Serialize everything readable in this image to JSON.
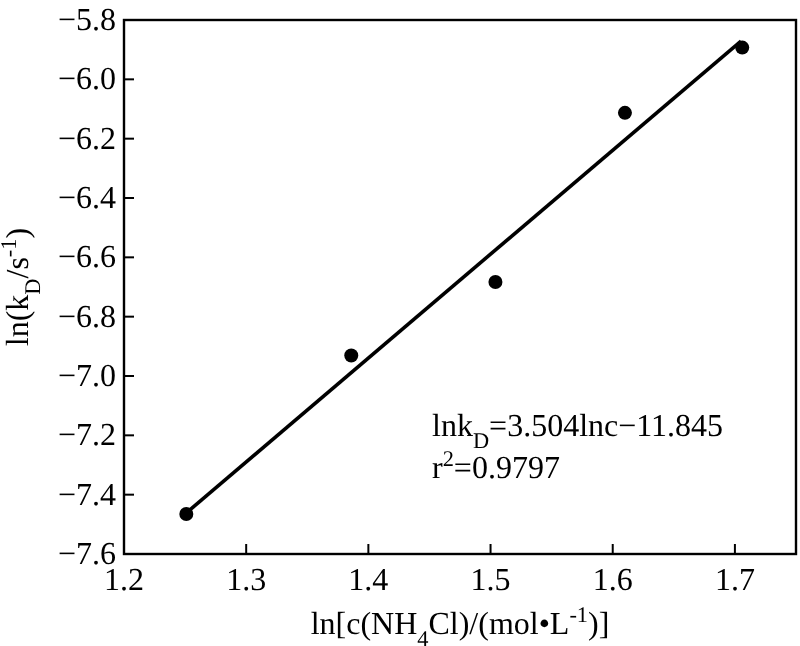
{
  "chart_data": {
    "type": "scatter",
    "xlabel": "ln[c(NH$_{4}$Cl)/(mol•L$^{-1}$)]",
    "ylabel": "ln(k$_{D}$/s$^{-1}$)",
    "xlim": [
      1.2,
      1.75
    ],
    "xticks": [
      1.2,
      1.3,
      1.4,
      1.5,
      1.6,
      1.7
    ],
    "ylim": [
      -7.6,
      -5.8
    ],
    "yticks": [
      -7.6,
      -7.4,
      -7.2,
      {
        "value": -7.0,
        "label": "−7.0"
      },
      -6.8,
      -6.6,
      -6.4,
      -6.2,
      {
        "value": -6.0,
        "label": "−6.0"
      },
      -5.8
    ],
    "grid": false,
    "series": [
      {
        "color": "#000000",
        "marker": "circle",
        "x": [
          1.251,
          1.386,
          1.504,
          1.61,
          1.706
        ],
        "values": [
          -7.465,
          -6.931,
          -6.683,
          -6.113,
          -5.893
        ]
      },
      {
        "type": "line",
        "color": "#000000",
        "x": [
          1.252,
          1.705
        ],
        "values": [
          -7.458,
          -5.871
        ]
      }
    ],
    "annotations": [
      "lnk$_{D}$=3.504lnc−11.845",
      "r$^{2}$=0.9797"
    ]
  }
}
